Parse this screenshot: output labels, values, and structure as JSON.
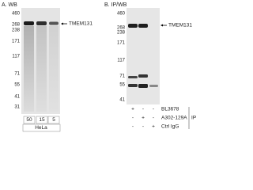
{
  "panel_a": {
    "title": "A. WB",
    "markers": [
      "460",
      "268",
      "238",
      "171",
      "117",
      "71",
      "55",
      "41",
      "31"
    ],
    "target": "TMEM131",
    "lanes": [
      "50",
      "15",
      "5"
    ],
    "cell_line": "HeLa"
  },
  "panel_b": {
    "title": "B. IP/WB",
    "markers": [
      "460",
      "268",
      "238",
      "171",
      "117",
      "71",
      "55",
      "41"
    ],
    "target": "TMEM131",
    "rows": [
      {
        "label": "BL3678",
        "signs": [
          "+",
          "-",
          "-"
        ]
      },
      {
        "label": "A302-129A",
        "signs": [
          "-",
          "+",
          "-"
        ]
      },
      {
        "label": "Ctrl IgG",
        "signs": [
          "-",
          "-",
          "+"
        ]
      }
    ],
    "group": "IP"
  }
}
